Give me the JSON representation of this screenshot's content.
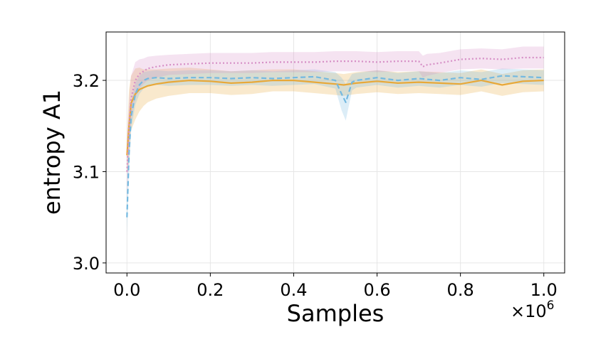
{
  "chart_data": {
    "type": "line",
    "title": "",
    "xlabel": "Samples",
    "ylabel": "entropy A1",
    "x_multiplier": "×10",
    "x_multiplier_exp": "6",
    "xlim": [
      -0.05,
      1.05
    ],
    "ylim": [
      2.989,
      3.253
    ],
    "grid": true,
    "x_ticks": [
      0.0,
      0.2,
      0.4,
      0.6,
      0.8,
      1.0
    ],
    "x_tick_labels": [
      "0.0",
      "0.2",
      "0.4",
      "0.6",
      "0.8",
      "1.0"
    ],
    "y_ticks": [
      3.0,
      3.1,
      3.2
    ],
    "y_tick_labels": [
      "3.0",
      "3.1",
      "3.2"
    ],
    "series": [
      {
        "color": "#E8A838",
        "style": "solid",
        "x": [
          0.0,
          0.005,
          0.01,
          0.02,
          0.03,
          0.04,
          0.05,
          0.07,
          0.1,
          0.15,
          0.2,
          0.25,
          0.3,
          0.35,
          0.4,
          0.45,
          0.5,
          0.52,
          0.55,
          0.6,
          0.65,
          0.7,
          0.75,
          0.8,
          0.85,
          0.9,
          0.95,
          1.0
        ],
        "values": [
          3.118,
          3.15,
          3.175,
          3.185,
          3.19,
          3.192,
          3.194,
          3.196,
          3.198,
          3.2,
          3.199,
          3.197,
          3.198,
          3.2,
          3.2,
          3.198,
          3.196,
          3.195,
          3.197,
          3.199,
          3.197,
          3.198,
          3.197,
          3.196,
          3.2,
          3.195,
          3.199,
          3.2
        ],
        "band": [
          0.02,
          0.04,
          0.03,
          0.028,
          0.024,
          0.02,
          0.018,
          0.016,
          0.015,
          0.014,
          0.013,
          0.013,
          0.013,
          0.012,
          0.012,
          0.012,
          0.012,
          0.012,
          0.012,
          0.012,
          0.012,
          0.012,
          0.012,
          0.012,
          0.012,
          0.012,
          0.012,
          0.012
        ]
      },
      {
        "color": "#74B9E0",
        "style": "dashed",
        "x": [
          0.0,
          0.005,
          0.01,
          0.02,
          0.03,
          0.04,
          0.05,
          0.07,
          0.1,
          0.15,
          0.2,
          0.25,
          0.3,
          0.35,
          0.4,
          0.45,
          0.5,
          0.515,
          0.525,
          0.54,
          0.55,
          0.6,
          0.65,
          0.7,
          0.75,
          0.8,
          0.85,
          0.9,
          0.95,
          1.0
        ],
        "values": [
          3.05,
          3.12,
          3.16,
          3.185,
          3.195,
          3.2,
          3.202,
          3.203,
          3.202,
          3.203,
          3.203,
          3.202,
          3.203,
          3.202,
          3.203,
          3.204,
          3.2,
          3.185,
          3.176,
          3.198,
          3.2,
          3.203,
          3.2,
          3.202,
          3.2,
          3.203,
          3.201,
          3.205,
          3.204,
          3.203
        ],
        "band": [
          0.02,
          0.02,
          0.015,
          0.012,
          0.01,
          0.009,
          0.008,
          0.008,
          0.008,
          0.008,
          0.008,
          0.008,
          0.008,
          0.008,
          0.008,
          0.008,
          0.009,
          0.018,
          0.02,
          0.009,
          0.008,
          0.008,
          0.008,
          0.008,
          0.008,
          0.008,
          0.008,
          0.008,
          0.008,
          0.008
        ]
      },
      {
        "color": "#D68FC6",
        "style": "dotted",
        "x": [
          0.0,
          0.005,
          0.01,
          0.02,
          0.03,
          0.04,
          0.05,
          0.07,
          0.1,
          0.15,
          0.2,
          0.25,
          0.3,
          0.35,
          0.4,
          0.45,
          0.5,
          0.55,
          0.6,
          0.65,
          0.7,
          0.71,
          0.72,
          0.75,
          0.8,
          0.85,
          0.9,
          0.95,
          1.0
        ],
        "values": [
          3.1,
          3.15,
          3.18,
          3.2,
          3.207,
          3.21,
          3.213,
          3.215,
          3.217,
          3.218,
          3.219,
          3.219,
          3.219,
          3.22,
          3.22,
          3.22,
          3.221,
          3.221,
          3.22,
          3.221,
          3.221,
          3.215,
          3.217,
          3.219,
          3.223,
          3.224,
          3.223,
          3.225,
          3.225
        ],
        "band": [
          0.03,
          0.03,
          0.025,
          0.02,
          0.016,
          0.014,
          0.013,
          0.012,
          0.011,
          0.011,
          0.011,
          0.011,
          0.011,
          0.011,
          0.011,
          0.011,
          0.011,
          0.011,
          0.011,
          0.011,
          0.011,
          0.012,
          0.012,
          0.011,
          0.011,
          0.011,
          0.011,
          0.012,
          0.012
        ]
      }
    ]
  }
}
